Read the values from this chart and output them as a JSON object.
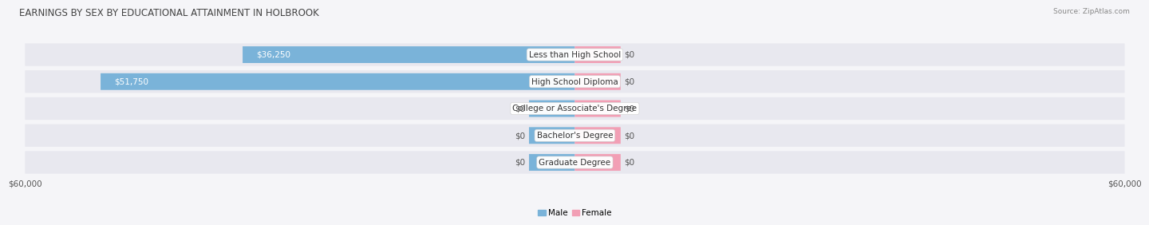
{
  "title": "EARNINGS BY SEX BY EDUCATIONAL ATTAINMENT IN HOLBROOK",
  "source": "Source: ZipAtlas.com",
  "categories": [
    "Less than High School",
    "High School Diploma",
    "College or Associate's Degree",
    "Bachelor's Degree",
    "Graduate Degree"
  ],
  "male_values": [
    36250,
    51750,
    0,
    0,
    0
  ],
  "female_values": [
    0,
    0,
    0,
    0,
    0
  ],
  "male_labels": [
    "$36,250",
    "$51,750",
    "$0",
    "$0",
    "$0"
  ],
  "female_labels": [
    "$0",
    "$0",
    "$0",
    "$0",
    "$0"
  ],
  "male_color": "#7ab3d9",
  "female_color": "#f29fb5",
  "row_bg_color": "#e8e8ef",
  "max_value": 60000,
  "stub_value": 5000,
  "xlabel_left": "$60,000",
  "xlabel_right": "$60,000",
  "legend_male": "Male",
  "legend_female": "Female",
  "title_fontsize": 8.5,
  "label_fontsize": 7.5,
  "tick_fontsize": 7.5,
  "source_fontsize": 6.5,
  "background_color": "#f5f5f8"
}
